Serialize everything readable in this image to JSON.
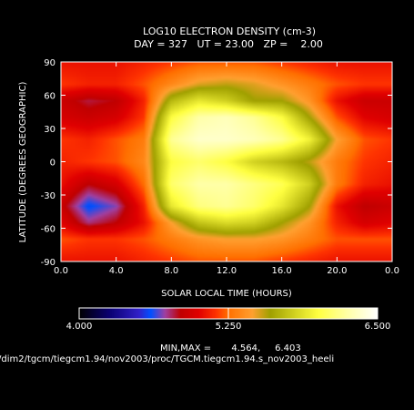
{
  "chart_data": {
    "type": "heatmap",
    "title": "LOG10 ELECTRON DENSITY (cm-3)",
    "subtitle": "DAY = 327   UT = 23.00   ZP =    2.00",
    "xlabel": "SOLAR LOCAL TIME (HOURS)",
    "ylabel": "LATITUDE (DEGREES GEOGRAPHIC)",
    "x_ticks": [
      "0.0",
      "4.0",
      "8.0",
      "12.0",
      "16.0",
      "20.0",
      "0.0"
    ],
    "y_ticks": [
      "90",
      "60",
      "30",
      "0",
      "-30",
      "-60",
      "-90"
    ],
    "xlim": [
      0,
      24
    ],
    "ylim": [
      -90,
      90
    ],
    "x": [
      0,
      2,
      4,
      6,
      8,
      10,
      12,
      14,
      16,
      18,
      20,
      22,
      24
    ],
    "y": [
      90,
      70,
      55,
      40,
      20,
      0,
      -20,
      -40,
      -55,
      -70,
      -90
    ],
    "z": [
      [
        5.05,
        5.05,
        5.05,
        5.1,
        5.15,
        5.2,
        5.2,
        5.2,
        5.15,
        5.1,
        5.05,
        5.05,
        5.05
      ],
      [
        5.15,
        5.1,
        5.1,
        5.2,
        5.35,
        5.5,
        5.55,
        5.5,
        5.4,
        5.3,
        5.2,
        5.15,
        5.15
      ],
      [
        4.9,
        4.8,
        4.85,
        5.1,
        5.7,
        5.9,
        5.8,
        5.6,
        5.6,
        5.4,
        5.05,
        4.9,
        4.9
      ],
      [
        4.95,
        4.9,
        4.95,
        5.15,
        6.0,
        6.25,
        6.3,
        6.2,
        6.0,
        5.6,
        5.2,
        5.0,
        4.95
      ],
      [
        5.15,
        5.1,
        5.2,
        5.3,
        6.2,
        6.35,
        6.35,
        6.3,
        6.2,
        5.95,
        5.45,
        5.2,
        5.15
      ],
      [
        5.1,
        5.15,
        5.2,
        5.35,
        6.0,
        6.1,
        6.0,
        5.8,
        5.7,
        5.55,
        5.3,
        5.15,
        5.1
      ],
      [
        5.05,
        4.85,
        4.95,
        5.25,
        6.1,
        6.25,
        6.25,
        6.15,
        6.05,
        5.8,
        5.3,
        5.1,
        5.05
      ],
      [
        4.9,
        4.58,
        4.7,
        5.1,
        5.9,
        6.15,
        6.2,
        6.1,
        5.9,
        5.6,
        5.05,
        4.85,
        4.9
      ],
      [
        5.0,
        4.75,
        4.85,
        5.05,
        5.45,
        5.75,
        5.85,
        5.8,
        5.6,
        5.4,
        5.1,
        4.95,
        5.0
      ],
      [
        5.2,
        5.15,
        5.15,
        5.2,
        5.3,
        5.4,
        5.45,
        5.45,
        5.4,
        5.3,
        5.2,
        5.2,
        5.2
      ],
      [
        5.05,
        5.05,
        5.05,
        5.1,
        5.15,
        5.2,
        5.2,
        5.2,
        5.15,
        5.1,
        5.05,
        5.05,
        5.05
      ]
    ],
    "colorbar": {
      "min_label": "4.000",
      "mid_label": "5.250",
      "max_label": "6.500",
      "range": [
        4.0,
        6.5
      ],
      "stops": [
        [
          4.0,
          "#000000"
        ],
        [
          4.25,
          "#0a0070"
        ],
        [
          4.5,
          "#3020c8"
        ],
        [
          4.6,
          "#0050ff"
        ],
        [
          4.72,
          "#a040a0"
        ],
        [
          4.85,
          "#c00000"
        ],
        [
          5.0,
          "#e00000"
        ],
        [
          5.15,
          "#ff3300"
        ],
        [
          5.25,
          "#ff7000"
        ],
        [
          5.45,
          "#ffa030"
        ],
        [
          5.6,
          "#a0a000"
        ],
        [
          5.8,
          "#d0d020"
        ],
        [
          6.0,
          "#ffff40"
        ],
        [
          6.25,
          "#ffffa8"
        ],
        [
          6.5,
          "#ffffff"
        ]
      ]
    },
    "minmax_text": "MIN,MAX =       4.564,     6.403",
    "source_path": "/dim2/tgcm/tiegcm1.94/nov2003/proc/TGCM.tiegcm1.94.s_nov2003_heeli"
  }
}
